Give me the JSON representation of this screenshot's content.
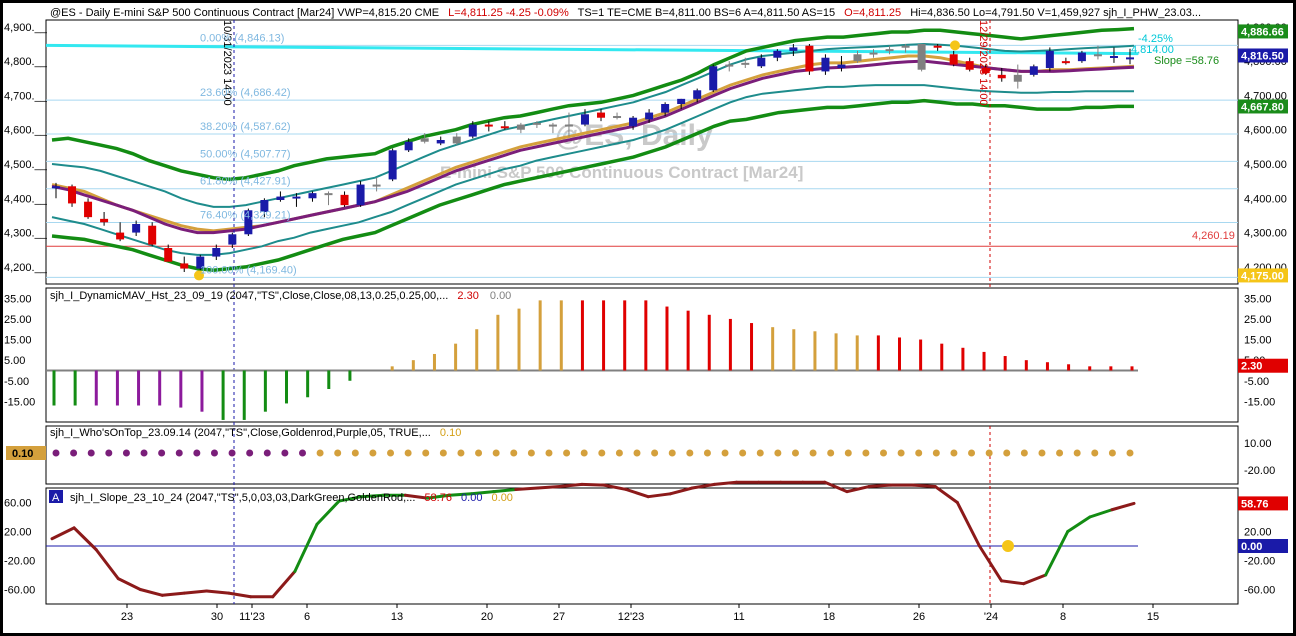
{
  "header": {
    "symbol_line": "@ES - Daily  E-mini S&P 500 Continuous Contract [Mar24]  VWP=4,815.20  CME",
    "change_line": "L=4,811.25  -4.25  -0.09%",
    "stats_line": "TS=1  TE=CME  B=4,811.00  BS=6  A=4,811.50  AS=15",
    "ohlc_open": "O=4,811.25",
    "ohlc_rest": "Hi=4,836.50  Lo=4,791.50  V=1,459,927  sjh_I_PHW_23.03..."
  },
  "watermark": {
    "line1": "@ES, Daily",
    "line2": "E-mini S&P 500 Continuous Contract [Mar24]"
  },
  "fib_labels": [
    "0.00% (4,846.13)",
    "23.60% (4,686.42)",
    "38.20% (4,587.62)",
    "50.00% (4,507.77)",
    "61.80% (4,427.91)",
    "76.40% (4,329.21)",
    "100.00% (4,169.40)"
  ],
  "annotations": {
    "vline1": "10/31/2023 14:00",
    "vline2": "12/29/2023 14:00",
    "pct_label": "-4.25%",
    "level_label": "4,814.00",
    "slope_label": "Slope =58.76",
    "red_level": "4,260.19"
  },
  "price_pane": {
    "yticks": [
      "4,900.__",
      "4,800.__",
      "4,700.__",
      "4,600.__",
      "4,500.__",
      "4,400.__",
      "4,300.__",
      "4,200.__"
    ],
    "right_ticks": [
      "4,900.00",
      "4,800.00",
      "4,700.00",
      "4,600.00",
      "4,500.00",
      "4,400.00",
      "4,300.00",
      "4,200.00"
    ],
    "tags": [
      {
        "text": "4,886.66",
        "color": "#1a8c1a"
      },
      {
        "text": "4,816.50",
        "color": "#1a1aa8"
      },
      {
        "text": "4,667.80",
        "color": "#1a8c1a"
      },
      {
        "text": "4,175.00",
        "color": "#f5c518"
      }
    ]
  },
  "hist_pane": {
    "title": "sjh_I_DynamicMAV_Hst_23_09_19 (2047,\"TS\",Close,Close,08,13,0.25,0.25,00,...",
    "val1": "2.30",
    "val2": "0.00",
    "yticks": [
      "35.00",
      "25.00",
      "15.00",
      "5.00",
      "-5.00",
      "-15.00"
    ],
    "tag": "2.30"
  },
  "dots_pane": {
    "title": "sjh_I_Who'sOnTop_23.09.14 (2047,\"TS\",Close,Goldenrod,Purple,05,  TRUE,...",
    "val1": "0.10",
    "yticks": [
      "10.00",
      "-20.00"
    ],
    "tag": "0.10"
  },
  "slope_pane": {
    "badge": "A",
    "title": "sjh_I_Slope_23_10_24 (2047,\"TS\",5,0,03,03,DarkGreen,GoldenRod,...",
    "val1": "58.76",
    "val2": "0.00",
    "val3": "0.00",
    "yticks": [
      "60.00",
      "20.00",
      "-20.00",
      "-60.00"
    ],
    "tag1": "58.76",
    "tag2": "0.00"
  },
  "xaxis": {
    "labels": [
      "23",
      "30",
      "11'23",
      "6",
      "13",
      "20",
      "27",
      "12'23",
      "11",
      "18",
      "26",
      "'24",
      "8",
      "15"
    ]
  },
  "chart_data": {
    "type": "candlestick",
    "title": "@ES - Daily E-mini S&P 500 Continuous Contract [Mar24]",
    "ylim": [
      4150,
      4920
    ],
    "candles": [
      {
        "o": 4430,
        "h": 4445,
        "l": 4400,
        "c": 4435,
        "col": "up"
      },
      {
        "o": 4435,
        "h": 4440,
        "l": 4375,
        "c": 4385,
        "col": "dn"
      },
      {
        "o": 4390,
        "h": 4400,
        "l": 4340,
        "c": 4345,
        "col": "dn"
      },
      {
        "o": 4340,
        "h": 4360,
        "l": 4320,
        "c": 4330,
        "col": "dn"
      },
      {
        "o": 4300,
        "h": 4330,
        "l": 4275,
        "c": 4280,
        "col": "dn"
      },
      {
        "o": 4300,
        "h": 4335,
        "l": 4290,
        "c": 4325,
        "col": "up"
      },
      {
        "o": 4320,
        "h": 4330,
        "l": 4260,
        "c": 4265,
        "col": "dn"
      },
      {
        "o": 4255,
        "h": 4265,
        "l": 4215,
        "c": 4215,
        "col": "dn"
      },
      {
        "o": 4210,
        "h": 4230,
        "l": 4185,
        "c": 4195,
        "col": "dn"
      },
      {
        "o": 4195,
        "h": 4235,
        "l": 4190,
        "c": 4230,
        "col": "up"
      },
      {
        "o": 4230,
        "h": 4265,
        "l": 4220,
        "c": 4255,
        "col": "up"
      },
      {
        "o": 4265,
        "h": 4300,
        "l": 4255,
        "c": 4295,
        "col": "up"
      },
      {
        "o": 4295,
        "h": 4370,
        "l": 4290,
        "c": 4365,
        "col": "up"
      },
      {
        "o": 4360,
        "h": 4400,
        "l": 4345,
        "c": 4395,
        "col": "up"
      },
      {
        "o": 4395,
        "h": 4420,
        "l": 4390,
        "c": 4405,
        "col": "up"
      },
      {
        "o": 4405,
        "h": 4415,
        "l": 4375,
        "c": 4400,
        "col": "up"
      },
      {
        "o": 4400,
        "h": 4420,
        "l": 4390,
        "c": 4415,
        "col": "up"
      },
      {
        "o": 4415,
        "h": 4420,
        "l": 4380,
        "c": 4410,
        "col": "neutral"
      },
      {
        "o": 4410,
        "h": 4420,
        "l": 4375,
        "c": 4380,
        "col": "dn"
      },
      {
        "o": 4380,
        "h": 4450,
        "l": 4375,
        "c": 4440,
        "col": "up"
      },
      {
        "o": 4440,
        "h": 4460,
        "l": 4420,
        "c": 4435,
        "col": "neutral"
      },
      {
        "o": 4455,
        "h": 4545,
        "l": 4450,
        "c": 4540,
        "col": "up"
      },
      {
        "o": 4540,
        "h": 4575,
        "l": 4535,
        "c": 4565,
        "col": "up"
      },
      {
        "o": 4565,
        "h": 4590,
        "l": 4560,
        "c": 4575,
        "col": "neutral"
      },
      {
        "o": 4570,
        "h": 4580,
        "l": 4555,
        "c": 4560,
        "col": "up"
      },
      {
        "o": 4560,
        "h": 4590,
        "l": 4555,
        "c": 4580,
        "col": "neutral"
      },
      {
        "o": 4580,
        "h": 4625,
        "l": 4575,
        "c": 4615,
        "col": "up"
      },
      {
        "o": 4615,
        "h": 4625,
        "l": 4595,
        "c": 4610,
        "col": "dn"
      },
      {
        "o": 4610,
        "h": 4625,
        "l": 4600,
        "c": 4605,
        "col": "dn"
      },
      {
        "o": 4600,
        "h": 4620,
        "l": 4590,
        "c": 4615,
        "col": "neutral"
      },
      {
        "o": 4615,
        "h": 4625,
        "l": 4605,
        "c": 4620,
        "col": "neutral"
      },
      {
        "o": 4615,
        "h": 4620,
        "l": 4590,
        "c": 4615,
        "col": "neutral"
      },
      {
        "o": 4610,
        "h": 4650,
        "l": 4580,
        "c": 4615,
        "col": "neutral"
      },
      {
        "o": 4615,
        "h": 4660,
        "l": 4610,
        "c": 4645,
        "col": "up"
      },
      {
        "o": 4650,
        "h": 4660,
        "l": 4625,
        "c": 4635,
        "col": "dn"
      },
      {
        "o": 4640,
        "h": 4650,
        "l": 4630,
        "c": 4640,
        "col": "neutral"
      },
      {
        "o": 4610,
        "h": 4640,
        "l": 4600,
        "c": 4635,
        "col": "up"
      },
      {
        "o": 4630,
        "h": 4660,
        "l": 4620,
        "c": 4650,
        "col": "up"
      },
      {
        "o": 4650,
        "h": 4680,
        "l": 4640,
        "c": 4675,
        "col": "up"
      },
      {
        "o": 4675,
        "h": 4690,
        "l": 4660,
        "c": 4690,
        "col": "up"
      },
      {
        "o": 4690,
        "h": 4720,
        "l": 4680,
        "c": 4715,
        "col": "up"
      },
      {
        "o": 4715,
        "h": 4790,
        "l": 4710,
        "c": 4785,
        "col": "up"
      },
      {
        "o": 4785,
        "h": 4800,
        "l": 4770,
        "c": 4790,
        "col": "neutral"
      },
      {
        "o": 4790,
        "h": 4810,
        "l": 4780,
        "c": 4795,
        "col": "neutral"
      },
      {
        "o": 4785,
        "h": 4820,
        "l": 4780,
        "c": 4810,
        "col": "up"
      },
      {
        "o": 4810,
        "h": 4835,
        "l": 4800,
        "c": 4830,
        "col": "up"
      },
      {
        "o": 4830,
        "h": 4850,
        "l": 4815,
        "c": 4840,
        "col": "up"
      },
      {
        "o": 4845,
        "h": 4850,
        "l": 4760,
        "c": 4770,
        "col": "dn"
      },
      {
        "o": 4770,
        "h": 4820,
        "l": 4760,
        "c": 4810,
        "col": "up"
      },
      {
        "o": 4790,
        "h": 4815,
        "l": 4770,
        "c": 4780,
        "col": "up"
      },
      {
        "o": 4800,
        "h": 4830,
        "l": 4795,
        "c": 4820,
        "col": "neutral"
      },
      {
        "o": 4820,
        "h": 4835,
        "l": 4810,
        "c": 4825,
        "col": "neutral"
      },
      {
        "o": 4830,
        "h": 4845,
        "l": 4820,
        "c": 4835,
        "col": "neutral"
      },
      {
        "o": 4840,
        "h": 4850,
        "l": 4825,
        "c": 4845,
        "col": "neutral"
      },
      {
        "o": 4850,
        "h": 4850,
        "l": 4770,
        "c": 4775,
        "col": "neutral"
      },
      {
        "o": 4845,
        "h": 4850,
        "l": 4830,
        "c": 4840,
        "col": "dn"
      },
      {
        "o": 4820,
        "h": 4830,
        "l": 4785,
        "c": 4790,
        "col": "dn"
      },
      {
        "o": 4800,
        "h": 4810,
        "l": 4770,
        "c": 4775,
        "col": "dn"
      },
      {
        "o": 4780,
        "h": 4790,
        "l": 4760,
        "c": 4765,
        "col": "dn"
      },
      {
        "o": 4760,
        "h": 4780,
        "l": 4740,
        "c": 4750,
        "col": "dn"
      },
      {
        "o": 4740,
        "h": 4790,
        "l": 4720,
        "c": 4760,
        "col": "neutral"
      },
      {
        "o": 4760,
        "h": 4790,
        "l": 4755,
        "c": 4785,
        "col": "up"
      },
      {
        "o": 4780,
        "h": 4840,
        "l": 4770,
        "c": 4830,
        "col": "up"
      },
      {
        "o": 4800,
        "h": 4810,
        "l": 4790,
        "c": 4800,
        "col": "dn"
      },
      {
        "o": 4800,
        "h": 4830,
        "l": 4795,
        "c": 4825,
        "col": "up"
      },
      {
        "o": 4815,
        "h": 4845,
        "l": 4805,
        "c": 4820,
        "col": "neutral"
      },
      {
        "o": 4815,
        "h": 4840,
        "l": 4795,
        "c": 4815,
        "col": "up"
      },
      {
        "o": 4810,
        "h": 4836,
        "l": 4791,
        "c": 4811,
        "col": "up"
      }
    ],
    "fib_levels": [
      4846.13,
      4686.42,
      4587.62,
      4507.77,
      4427.91,
      4329.21,
      4169.4
    ],
    "red_level": 4260.19,
    "cyan_line": [
      4846,
      4822
    ],
    "bands": {
      "upper_green": [
        4570,
        4575,
        4565,
        4555,
        4545,
        4530,
        4510,
        4495,
        4480,
        4470,
        4460,
        4455,
        4460,
        4470,
        4480,
        4495,
        4505,
        4515,
        4520,
        4525,
        4530,
        4550,
        4565,
        4580,
        4590,
        4600,
        4615,
        4625,
        4635,
        4640,
        4650,
        4660,
        4670,
        4675,
        4680,
        4690,
        4700,
        4715,
        4730,
        4745,
        4765,
        4790,
        4810,
        4830,
        4840,
        4850,
        4860,
        4865,
        4870,
        4870,
        4875,
        4880,
        4885,
        4885,
        4890,
        4890,
        4885,
        4880,
        4875,
        4870,
        4865,
        4870,
        4875,
        4880,
        4885,
        4890,
        4892,
        4895
      ],
      "lower_green": [
        4290,
        4285,
        4280,
        4270,
        4260,
        4250,
        4235,
        4220,
        4205,
        4195,
        4190,
        4195,
        4200,
        4210,
        4220,
        4235,
        4250,
        4265,
        4280,
        4290,
        4300,
        4320,
        4340,
        4360,
        4380,
        4395,
        4410,
        4425,
        4440,
        4450,
        4460,
        4470,
        4480,
        4490,
        4500,
        4510,
        4520,
        4535,
        4550,
        4570,
        4590,
        4610,
        4625,
        4630,
        4640,
        4650,
        4655,
        4660,
        4665,
        4665,
        4670,
        4675,
        4680,
        4680,
        4685,
        4680,
        4675,
        4675,
        4670,
        4670,
        4665,
        4660,
        4660,
        4660,
        4665,
        4665,
        4668,
        4668
      ],
      "goldenrod": [
        4440,
        4430,
        4420,
        4400,
        4380,
        4365,
        4350,
        4335,
        4320,
        4310,
        4305,
        4310,
        4315,
        4320,
        4330,
        4340,
        4350,
        4360,
        4370,
        4380,
        4390,
        4410,
        4430,
        4450,
        4470,
        4490,
        4505,
        4520,
        4535,
        4550,
        4560,
        4570,
        4580,
        4590,
        4600,
        4610,
        4620,
        4635,
        4650,
        4670,
        4690,
        4710,
        4730,
        4745,
        4760,
        4770,
        4780,
        4790,
        4795,
        4795,
        4800,
        4805,
        4810,
        4815,
        4815,
        4810,
        4800,
        4790,
        4780,
        4775,
        4770,
        4770,
        4775,
        4775,
        4778,
        4780,
        4782,
        4785
      ],
      "purple": [
        4435,
        4425,
        4410,
        4395,
        4380,
        4365,
        4345,
        4325,
        4310,
        4300,
        4300,
        4305,
        4310,
        4320,
        4330,
        4340,
        4350,
        4360,
        4370,
        4380,
        4390,
        4405,
        4420,
        4440,
        4460,
        4480,
        4495,
        4510,
        4525,
        4540,
        4550,
        4560,
        4570,
        4580,
        4590,
        4600,
        4610,
        4625,
        4640,
        4660,
        4680,
        4700,
        4720,
        4735,
        4750,
        4760,
        4770,
        4775,
        4780,
        4782,
        4785,
        4790,
        4795,
        4798,
        4800,
        4795,
        4790,
        4785,
        4780,
        4775,
        4770,
        4770,
        4770,
        4772,
        4775,
        4777,
        4780,
        4782
      ],
      "teal_upper": [
        4500,
        4495,
        4490,
        4480,
        4465,
        4450,
        4435,
        4420,
        4400,
        4385,
        4375,
        4375,
        4380,
        4390,
        4400,
        4410,
        4420,
        4430,
        4440,
        4450,
        4460,
        4480,
        4500,
        4520,
        4540,
        4555,
        4570,
        4585,
        4600,
        4610,
        4620,
        4630,
        4640,
        4650,
        4660,
        4670,
        4680,
        4695,
        4710,
        4730,
        4750,
        4770,
        4790,
        4805,
        4815,
        4820,
        4825,
        4830,
        4835,
        4838,
        4840,
        4842,
        4845,
        4848,
        4850,
        4848,
        4845,
        4840,
        4835,
        4830,
        4828,
        4830,
        4832,
        4835,
        4838,
        4840,
        4842,
        4845
      ],
      "teal_lower": [
        4345,
        4335,
        4325,
        4310,
        4295,
        4280,
        4265,
        4250,
        4240,
        4235,
        4235,
        4240,
        4250,
        4260,
        4275,
        4285,
        4300,
        4310,
        4320,
        4330,
        4345,
        4360,
        4380,
        4400,
        4420,
        4440,
        4455,
        4470,
        4485,
        4495,
        4510,
        4520,
        4530,
        4540,
        4550,
        4560,
        4570,
        4585,
        4600,
        4620,
        4640,
        4660,
        4680,
        4695,
        4705,
        4710,
        4715,
        4720,
        4725,
        4725,
        4728,
        4730,
        4730,
        4730,
        4730,
        4725,
        4720,
        4715,
        4712,
        4710,
        4708,
        4708,
        4710,
        4710,
        4712,
        4712,
        4712,
        4712
      ]
    },
    "histogram": [
      -17,
      -17,
      -17,
      -17,
      -17,
      -17,
      -18,
      -20,
      -24,
      -24,
      -20,
      -16,
      -13,
      -9,
      -5,
      0,
      2,
      5,
      8,
      13,
      20,
      27,
      30,
      34,
      34,
      34,
      34,
      34,
      34,
      31,
      29,
      27,
      25,
      23,
      21,
      20,
      19,
      18,
      17,
      17,
      16,
      15,
      13,
      11,
      9,
      7,
      5,
      4,
      3,
      2,
      2,
      2
    ],
    "hist_colors": [
      "green",
      "green",
      "purple",
      "purple",
      "purple",
      "purple",
      "purple",
      "purple",
      "green",
      "green",
      "green",
      "green",
      "green",
      "green",
      "green",
      "goldenrod",
      "goldenrod",
      "goldenrod",
      "goldenrod",
      "goldenrod",
      "goldenrod",
      "goldenrod",
      "goldenrod",
      "goldenrod",
      "goldenrod",
      "red",
      "red",
      "red",
      "red",
      "red",
      "red",
      "red",
      "red",
      "red",
      "goldenrod",
      "goldenrod",
      "goldenrod",
      "goldenrod",
      "goldenrod",
      "red",
      "red",
      "red",
      "red",
      "red",
      "red",
      "red",
      "red",
      "red",
      "red",
      "red",
      "red",
      "red"
    ],
    "dot_colors_purple_count": 15,
    "dot_count": 62,
    "slope": [
      10,
      25,
      -5,
      -45,
      -60,
      -68,
      -65,
      -62,
      -65,
      -70,
      -70,
      -35,
      30,
      62,
      68,
      70,
      70,
      66,
      70,
      72,
      75,
      78,
      80,
      82,
      85,
      84,
      78,
      68,
      72,
      80,
      85,
      88,
      88,
      88,
      88,
      88,
      75,
      82,
      84,
      84,
      82,
      60,
      0,
      -48,
      -52,
      -40,
      20,
      40,
      50,
      58.76
    ]
  }
}
